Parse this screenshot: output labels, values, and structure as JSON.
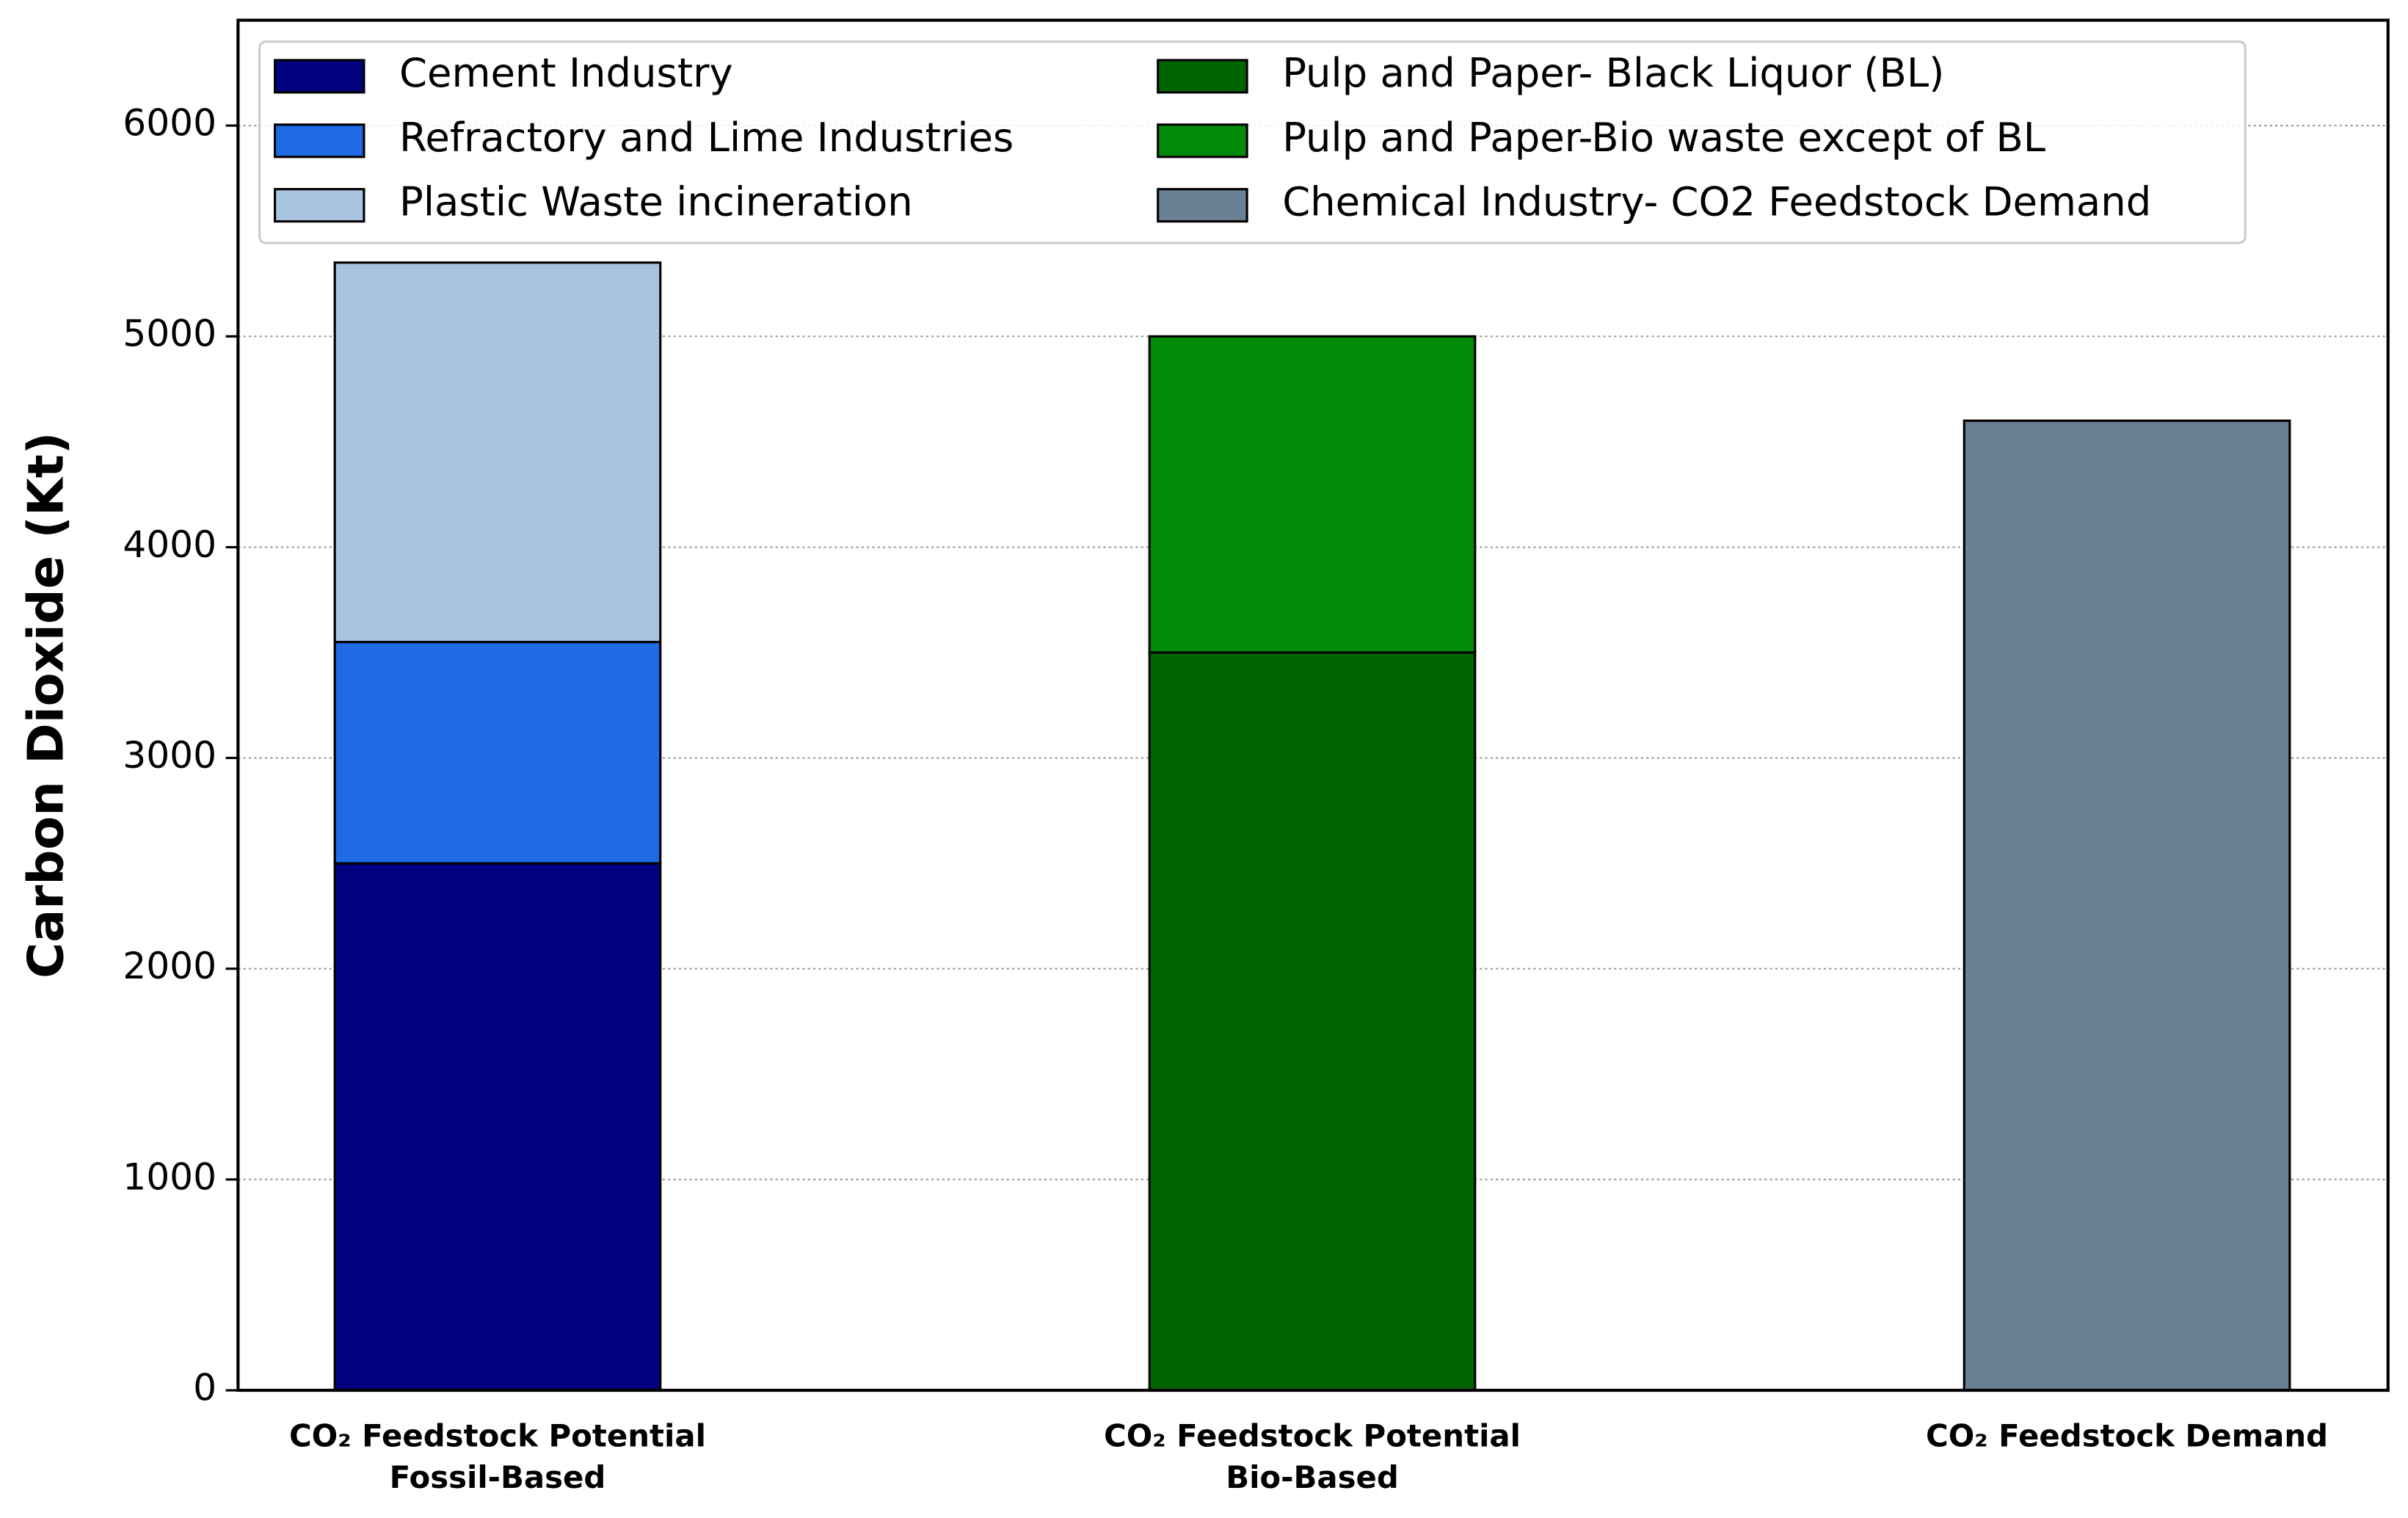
{
  "chart_data": {
    "type": "stacked_bar",
    "y_label": "Carbon Dioxide (Kt)",
    "categories": [
      [
        "CO₂ Feedstock Potential",
        "Fossil-Based"
      ],
      [
        "CO₂ Feedstock Potential",
        "Bio-Based"
      ],
      [
        "CO₂ Feedstock Demand"
      ]
    ],
    "series": [
      {
        "name": "Cement Industry",
        "color": "#000080",
        "values": [
          2500,
          null,
          null
        ]
      },
      {
        "name": "Refractory and Lime Industries",
        "color": "#1f6be6",
        "values": [
          1050,
          null,
          null
        ]
      },
      {
        "name": "Plastic Waste incineration",
        "color": "#a9c4e0",
        "values": [
          1800,
          null,
          null
        ]
      },
      {
        "name": "Pulp and Paper- Black Liquor (BL)",
        "color": "#006400",
        "values": [
          null,
          3500,
          null
        ]
      },
      {
        "name": "Pulp and Paper-Bio waste except of BL",
        "color": "#048a0a",
        "values": [
          null,
          1500,
          null
        ]
      },
      {
        "name": "Chemical Industry- CO2 Feedstock Demand",
        "color": "#6b8094",
        "values": [
          null,
          null,
          4600
        ]
      }
    ],
    "ylim": [
      0,
      6500
    ],
    "yticks": [
      0,
      1000,
      2000,
      3000,
      4000,
      5000,
      6000
    ],
    "grid": true,
    "legend": "upper left"
  }
}
